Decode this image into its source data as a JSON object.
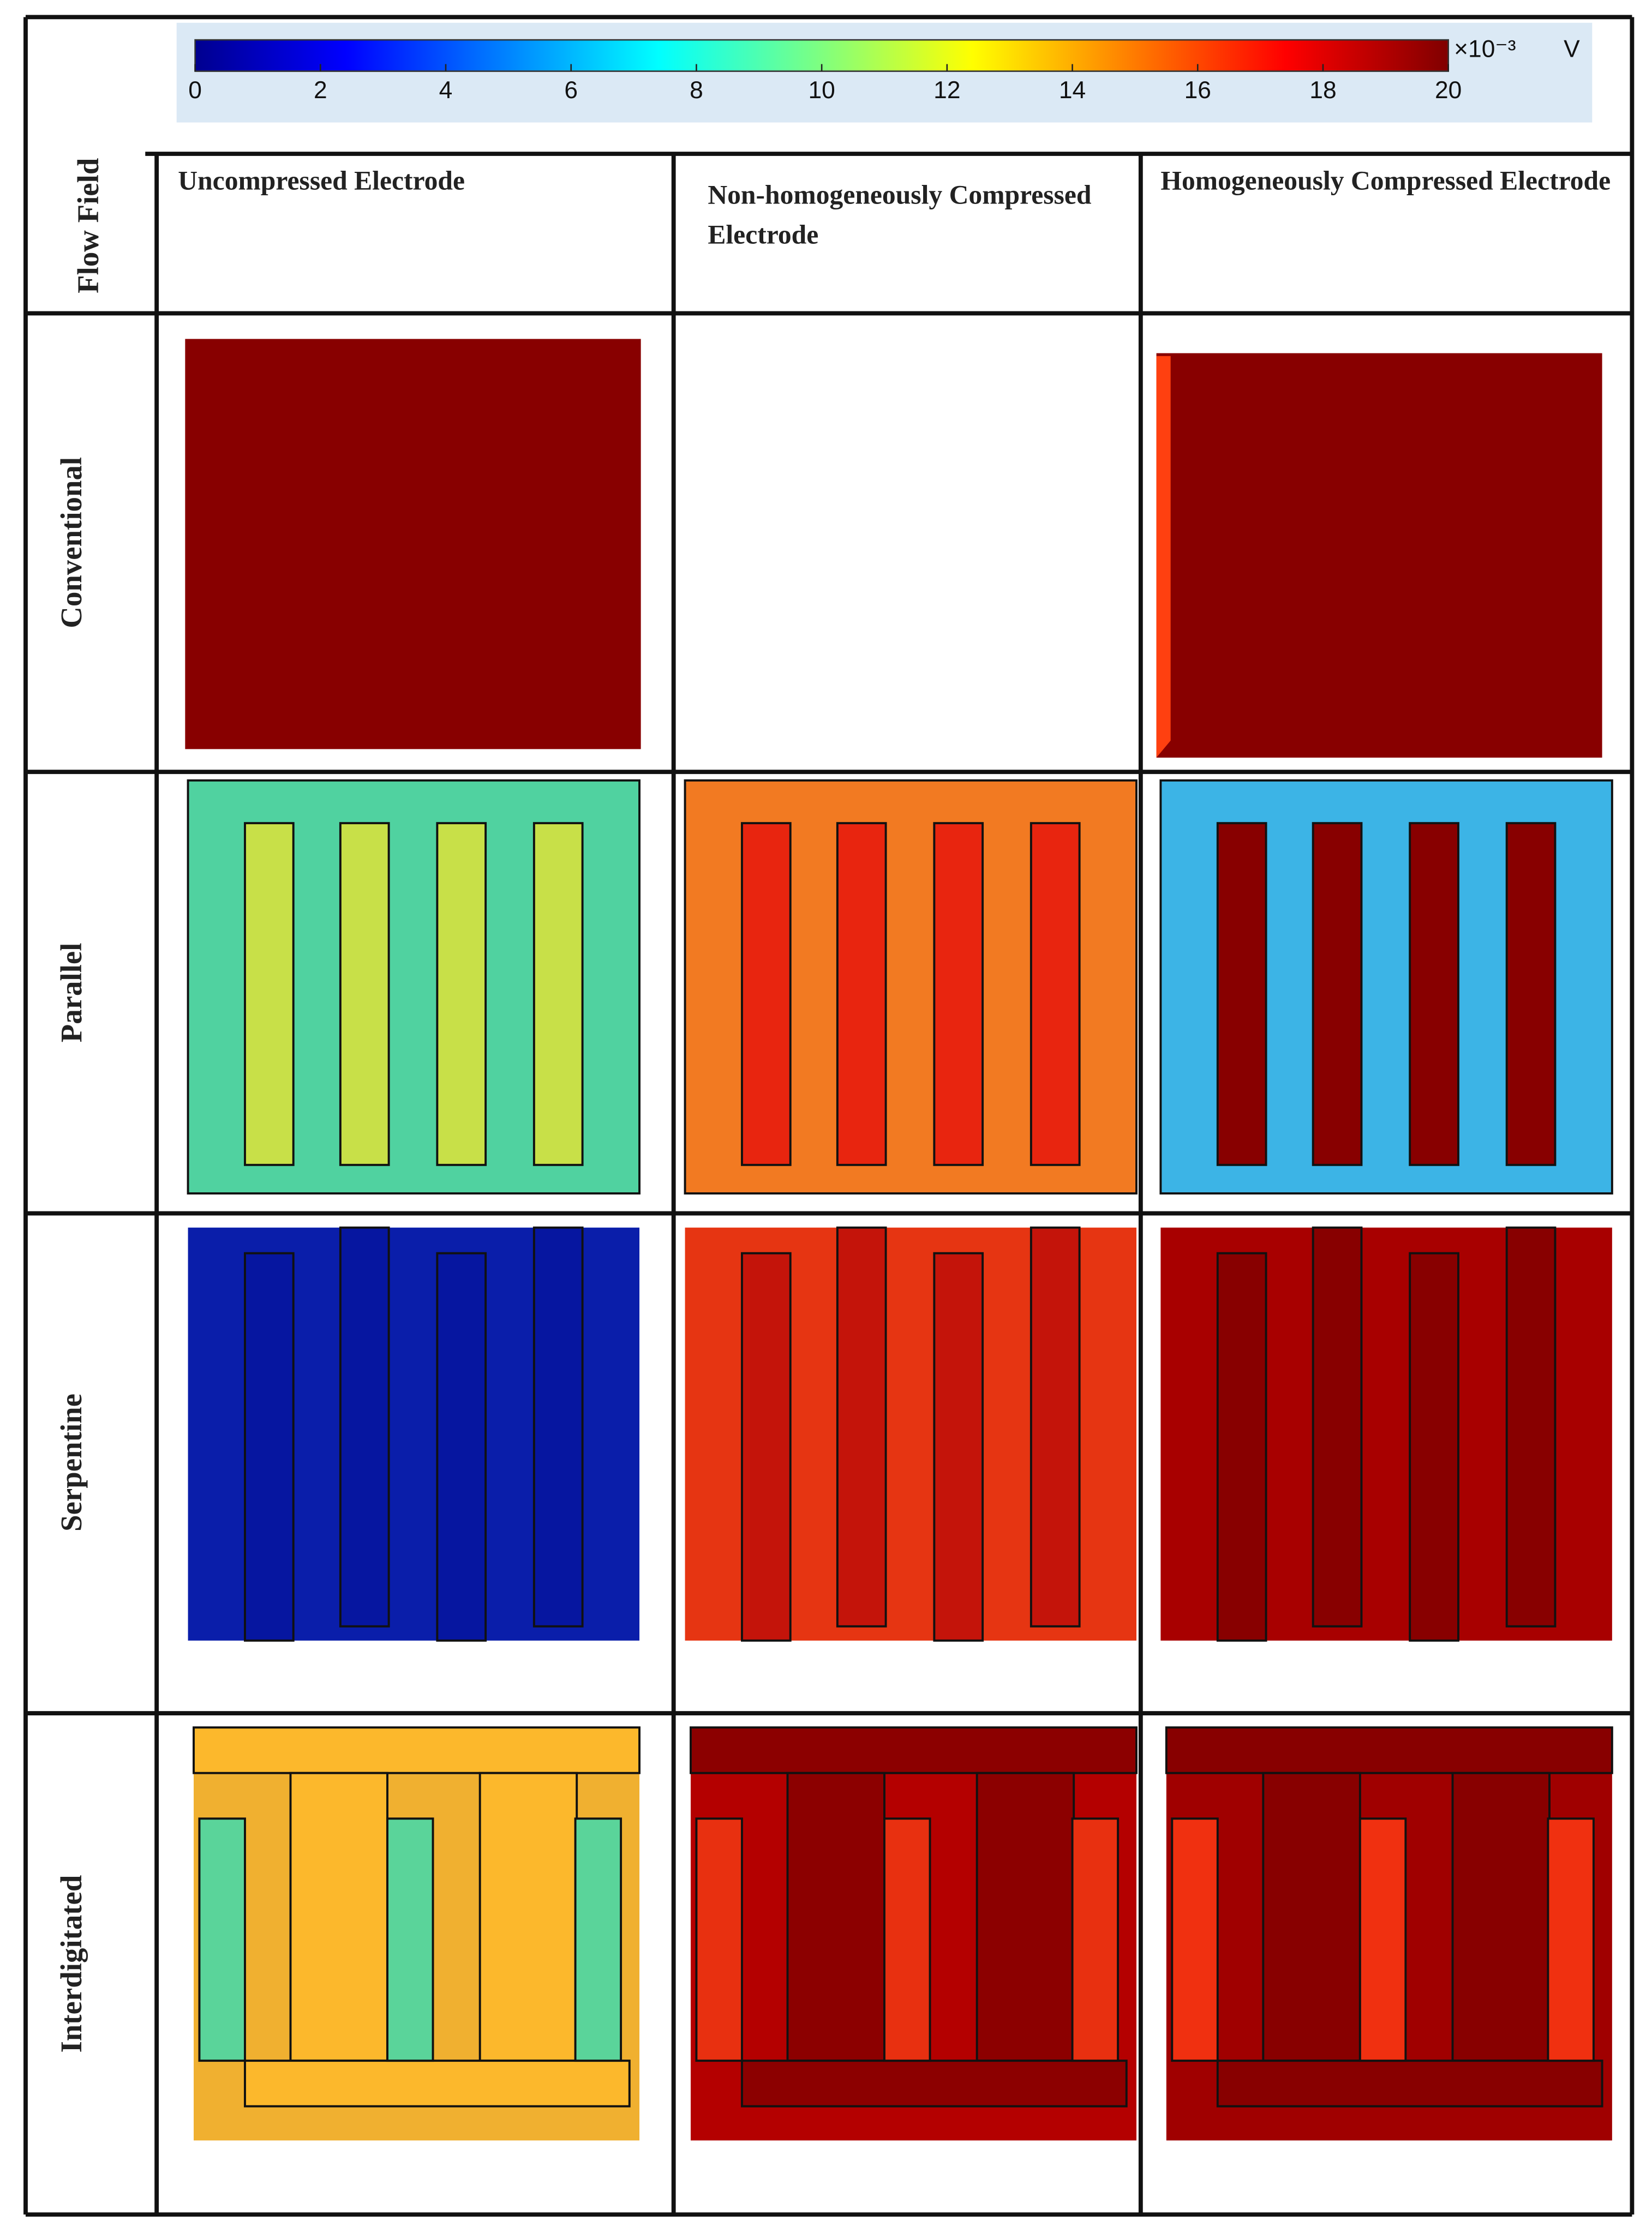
{
  "colorbar": {
    "range": [
      0,
      20
    ],
    "ticks": [
      0,
      2,
      4,
      6,
      8,
      10,
      12,
      14,
      16,
      18,
      20
    ],
    "multiplier": "×10⁻³",
    "unit": "V"
  },
  "table": {
    "corner": "Flow Field",
    "columns": [
      "Uncompressed Electrode",
      "Non-homogeneously Compressed Electrode",
      "Homogeneously Compressed Electrode"
    ],
    "rows": [
      "Conventional",
      "Parallel",
      "Serpentine",
      "Interdigitated"
    ]
  }
}
